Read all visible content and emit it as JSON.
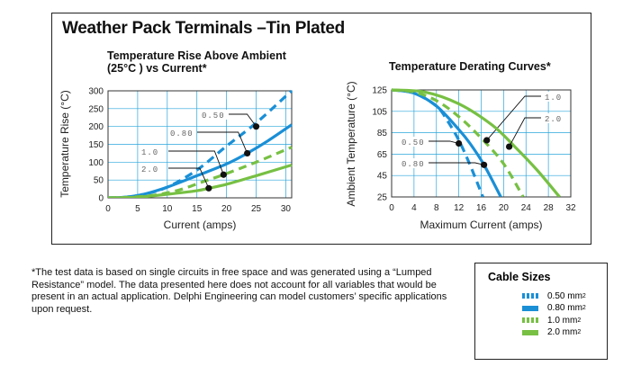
{
  "title": "Weather Pack Terminals –Tin Plated",
  "colors": {
    "blue": "#1a8fd6",
    "green": "#77c043",
    "grid": "#2aa6dc"
  },
  "chart_data": [
    {
      "type": "line",
      "title": "Temperature Rise Above Ambient (25°C ) vs Current*",
      "xlabel": "Current (amps)",
      "ylabel": "Temperature Rise (°C)",
      "xlim": [
        0,
        31
      ],
      "ylim": [
        0,
        300
      ],
      "xticks": [
        0,
        5,
        10,
        15,
        20,
        25,
        30
      ],
      "yticks": [
        0,
        50,
        100,
        150,
        200,
        250,
        300
      ],
      "grid": true,
      "series": [
        {
          "name": "0.50",
          "color": "blue",
          "style": "dashed",
          "x": [
            0,
            3,
            6,
            10,
            15,
            20,
            25,
            30,
            31
          ],
          "y": [
            0,
            2,
            10,
            30,
            78,
            145,
            210,
            285,
            300
          ],
          "marker": [
            25,
            200
          ]
        },
        {
          "name": "0.80",
          "color": "blue",
          "style": "solid",
          "x": [
            0,
            3,
            6,
            10,
            15,
            20,
            23.5,
            27,
            31
          ],
          "y": [
            0,
            2,
            10,
            30,
            62,
            95,
            125,
            160,
            205
          ],
          "marker": [
            23.5,
            125
          ]
        },
        {
          "name": "1.0",
          "color": "green",
          "style": "dashed",
          "x": [
            0,
            4,
            8,
            12,
            16,
            19.5,
            25,
            31
          ],
          "y": [
            0,
            2,
            8,
            22,
            45,
            65,
            100,
            142
          ],
          "marker": [
            19.5,
            65
          ]
        },
        {
          "name": "2.0",
          "color": "green",
          "style": "solid",
          "x": [
            0,
            5,
            10,
            15,
            17,
            20,
            25,
            31
          ],
          "y": [
            0,
            2,
            10,
            20,
            27,
            38,
            62,
            92
          ],
          "marker": [
            17,
            27
          ]
        }
      ]
    },
    {
      "type": "line",
      "title": "Temperature Derating Curves*",
      "xlabel": "Maximum Current (amps)",
      "ylabel": "Ambient Temperature (°C)",
      "xlim": [
        0,
        32
      ],
      "ylim": [
        25,
        125
      ],
      "xticks": [
        0,
        4,
        8,
        12,
        16,
        20,
        24,
        28,
        32
      ],
      "yticks": [
        25,
        45,
        65,
        85,
        105,
        125
      ],
      "grid": true,
      "series": [
        {
          "name": "0.50",
          "color": "blue",
          "style": "dashed",
          "x": [
            0,
            4,
            8,
            10,
            12,
            14,
            16.3
          ],
          "y": [
            125,
            122,
            110,
            96,
            78,
            55,
            25
          ],
          "marker": [
            12,
            75
          ]
        },
        {
          "name": "0.80",
          "color": "blue",
          "style": "solid",
          "x": [
            0,
            4,
            8,
            12,
            14,
            16.5,
            19.5
          ],
          "y": [
            125,
            122,
            110,
            88,
            75,
            55,
            25
          ],
          "marker": [
            16.5,
            55
          ]
        },
        {
          "name": "1.0",
          "color": "green",
          "style": "dashed",
          "x": [
            0,
            4,
            8,
            12,
            16,
            20,
            23.5
          ],
          "y": [
            125,
            123,
            115,
            100,
            80,
            56,
            25
          ],
          "marker": [
            17,
            78
          ]
        },
        {
          "name": "2.0",
          "color": "green",
          "style": "solid",
          "x": [
            0,
            6,
            12,
            18,
            22,
            26,
            30
          ],
          "y": [
            125,
            123,
            112,
            92,
            72,
            50,
            25
          ],
          "marker": [
            21,
            72
          ]
        }
      ]
    }
  ],
  "footnote": "*The test data is based on single circuits in free space and was generated using a “Lumped Resistance” model. The data presented here does not account for all variables that would be present in an actual application. Delphi Engineering can model customers’ specific applications upon request.",
  "legend": {
    "title": "Cable Sizes",
    "items": [
      {
        "label": "0.50 mm",
        "sup": "2",
        "color": "blue",
        "style": "dashed"
      },
      {
        "label": "0.80 mm",
        "sup": "2",
        "color": "blue",
        "style": "solid"
      },
      {
        "label": "1.0 mm",
        "sup": "2",
        "color": "green",
        "style": "dashed"
      },
      {
        "label": "2.0 mm",
        "sup": "2",
        "color": "green",
        "style": "solid"
      }
    ]
  }
}
